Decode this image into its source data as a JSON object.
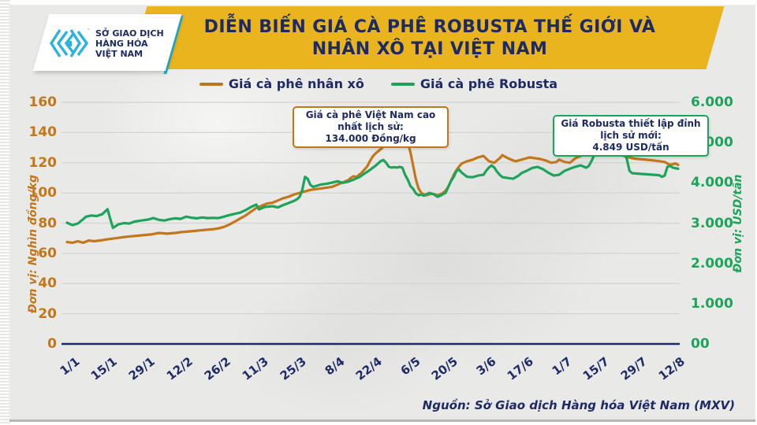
{
  "header": {
    "logo": {
      "org_lines": [
        "SỞ GIAO DỊCH",
        "HÀNG HÓA",
        "VIỆT NAM"
      ]
    },
    "title_lines": [
      "DIỄN BIẾN GIÁ CÀ PHÊ ROBUSTA THẾ GIỚI VÀ",
      "NHÂN XÔ TẠI VIỆT NAM"
    ]
  },
  "legend": {
    "items": [
      {
        "label": "Giá cà phê nhân xô",
        "color": "#c4761b"
      },
      {
        "label": "Giá cà phê Robusta",
        "color": "#1ca45a"
      }
    ]
  },
  "footer": {
    "source": "Nguồn: Sở Giao dịch Hàng hóa Việt Nam (MXV)"
  },
  "colors": {
    "navy": "#1d2a66",
    "banner_yellow": "#e9b41d",
    "logo_cyan": "#2bb3e0",
    "orange_series": "#c4761b",
    "green_series": "#1ca45a",
    "gridline": "#d3d3d1",
    "card_bg": "#e9e9e7"
  },
  "chart_data": {
    "type": "line",
    "title": "Diễn biến giá cà phê Robusta thế giới và nhân xô tại Việt Nam",
    "grid": true,
    "legend_position": "top",
    "x_tick_labels": [
      "1/1",
      "15/1",
      "29/1",
      "12/2",
      "26/2",
      "11/3",
      "25/3",
      "8/4",
      "22/4",
      "6/5",
      "20/5",
      "3/6",
      "17/6",
      "1/7",
      "15/7",
      "29/7",
      "12/8"
    ],
    "x_domain_days": [
      0,
      226
    ],
    "x_tick_day_step": 14,
    "left_axis": {
      "title": "Đơn vị: Nghìn đồng/kg",
      "range": [
        0,
        160
      ],
      "ticks": [
        {
          "label": "160",
          "value": 160
        },
        {
          "label": "140",
          "value": 140
        },
        {
          "label": "120",
          "value": 120
        },
        {
          "label": "100",
          "value": 100
        },
        {
          "label": "80",
          "value": 80
        },
        {
          "label": "60",
          "value": 60
        },
        {
          "label": "40",
          "value": 40
        },
        {
          "label": "20",
          "value": 20
        },
        {
          "label": "0",
          "value": 0
        }
      ]
    },
    "right_axis": {
      "title": "Đơn vị: USD/tấn",
      "range": [
        0,
        6000
      ],
      "ticks": [
        {
          "label": "6.000",
          "value": 6000
        },
        {
          "label": "5.000",
          "value": 5000
        },
        {
          "label": "4.000",
          "value": 4000
        },
        {
          "label": "3.000",
          "value": 3000
        },
        {
          "label": "2.000",
          "value": 2000
        },
        {
          "label": "1.000",
          "value": 1000
        },
        {
          "label": "00",
          "value": 0
        }
      ]
    },
    "series": [
      {
        "name": "Giá cà phê nhân xô",
        "axis": "left",
        "unit": "nghìn đồng/kg",
        "color": "#c4761b",
        "points": [
          [
            0,
            67.5
          ],
          [
            2,
            67
          ],
          [
            4,
            68
          ],
          [
            6,
            67
          ],
          [
            8,
            68.5
          ],
          [
            10,
            68
          ],
          [
            12,
            68.5
          ],
          [
            14,
            69
          ],
          [
            16,
            69.5
          ],
          [
            18,
            70
          ],
          [
            20,
            70.5
          ],
          [
            22,
            71
          ],
          [
            25,
            71.5
          ],
          [
            28,
            72
          ],
          [
            31,
            72.5
          ],
          [
            34,
            73.5
          ],
          [
            37,
            73
          ],
          [
            40,
            73.5
          ],
          [
            42,
            74
          ],
          [
            45,
            74.5
          ],
          [
            48,
            75
          ],
          [
            51,
            75.5
          ],
          [
            54,
            76
          ],
          [
            56,
            76.5
          ],
          [
            58,
            77.5
          ],
          [
            60,
            79
          ],
          [
            62,
            81
          ],
          [
            64,
            83
          ],
          [
            66,
            85
          ],
          [
            68,
            87.5
          ],
          [
            70,
            90
          ],
          [
            72,
            91.5
          ],
          [
            74,
            93
          ],
          [
            76,
            93.5
          ],
          [
            78,
            95
          ],
          [
            80,
            96.5
          ],
          [
            82,
            97.5
          ],
          [
            84,
            99
          ],
          [
            86,
            100
          ],
          [
            88,
            101
          ],
          [
            90,
            102
          ],
          [
            92,
            102.5
          ],
          [
            94,
            103
          ],
          [
            96,
            103.5
          ],
          [
            98,
            104
          ],
          [
            100,
            105.5
          ],
          [
            102,
            107
          ],
          [
            104,
            108.5
          ],
          [
            105,
            110
          ],
          [
            106,
            111
          ],
          [
            107,
            110.5
          ],
          [
            108,
            112
          ],
          [
            109,
            113.5
          ],
          [
            110,
            115.5
          ],
          [
            111,
            117.5
          ],
          [
            112,
            121
          ],
          [
            113,
            124
          ],
          [
            114,
            126
          ],
          [
            115,
            127.5
          ],
          [
            116,
            129
          ],
          [
            117,
            130.5
          ],
          [
            118,
            131
          ],
          [
            119,
            132.5
          ],
          [
            120,
            131.5
          ],
          [
            121,
            133
          ],
          [
            122,
            133.5
          ],
          [
            123,
            133
          ],
          [
            124,
            134
          ],
          [
            125,
            133.5
          ],
          [
            126,
            133
          ],
          [
            127,
            127
          ],
          [
            128,
            118
          ],
          [
            129,
            109
          ],
          [
            130,
            103
          ],
          [
            131,
            100
          ],
          [
            132,
            99
          ],
          [
            133,
            98.5
          ],
          [
            134,
            99
          ],
          [
            135,
            99.5
          ],
          [
            136,
            99
          ],
          [
            137,
            98.5
          ],
          [
            138,
            99
          ],
          [
            139,
            100
          ],
          [
            140,
            101.5
          ],
          [
            141,
            104
          ],
          [
            142,
            108
          ],
          [
            143,
            112
          ],
          [
            144,
            115
          ],
          [
            145,
            117.5
          ],
          [
            146,
            119.5
          ],
          [
            148,
            121
          ],
          [
            150,
            122
          ],
          [
            152,
            123.5
          ],
          [
            154,
            124.5
          ],
          [
            156,
            121
          ],
          [
            158,
            120
          ],
          [
            160,
            123
          ],
          [
            161,
            125
          ],
          [
            163,
            123
          ],
          [
            165,
            121.5
          ],
          [
            166,
            121
          ],
          [
            168,
            122
          ],
          [
            169,
            122.5
          ],
          [
            171,
            123.5
          ],
          [
            173,
            123
          ],
          [
            175,
            122.5
          ],
          [
            177,
            121.5
          ],
          [
            179,
            120
          ],
          [
            181,
            120.5
          ],
          [
            182,
            122
          ],
          [
            184,
            120.5
          ],
          [
            186,
            120
          ],
          [
            188,
            123
          ],
          [
            190,
            124.5
          ],
          [
            193,
            126
          ],
          [
            196,
            127
          ],
          [
            198,
            126.5
          ],
          [
            201,
            126
          ],
          [
            204,
            125.5
          ],
          [
            206,
            124.5
          ],
          [
            209,
            123
          ],
          [
            211,
            122.5
          ],
          [
            214,
            122
          ],
          [
            217,
            121.5
          ],
          [
            219,
            121
          ],
          [
            221,
            120.5
          ],
          [
            223,
            118.5
          ],
          [
            225,
            119.5
          ],
          [
            226,
            118.5
          ]
        ]
      },
      {
        "name": "Giá cà phê Robusta",
        "axis": "right",
        "unit": "USD/tấn",
        "color": "#1ca45a",
        "points": [
          [
            0,
            3010
          ],
          [
            2,
            2950
          ],
          [
            4,
            2990
          ],
          [
            6,
            3100
          ],
          [
            7,
            3160
          ],
          [
            9,
            3190
          ],
          [
            11,
            3175
          ],
          [
            13,
            3220
          ],
          [
            15,
            3345
          ],
          [
            16,
            3100
          ],
          [
            17,
            2880
          ],
          [
            19,
            2970
          ],
          [
            21,
            3000
          ],
          [
            23,
            2990
          ],
          [
            25,
            3040
          ],
          [
            27,
            3060
          ],
          [
            28,
            3070
          ],
          [
            30,
            3090
          ],
          [
            32,
            3125
          ],
          [
            34,
            3080
          ],
          [
            36,
            3065
          ],
          [
            38,
            3100
          ],
          [
            40,
            3120
          ],
          [
            42,
            3105
          ],
          [
            44,
            3160
          ],
          [
            46,
            3135
          ],
          [
            48,
            3120
          ],
          [
            50,
            3140
          ],
          [
            52,
            3125
          ],
          [
            54,
            3130
          ],
          [
            56,
            3125
          ],
          [
            58,
            3160
          ],
          [
            60,
            3200
          ],
          [
            62,
            3230
          ],
          [
            64,
            3260
          ],
          [
            66,
            3320
          ],
          [
            68,
            3400
          ],
          [
            70,
            3460
          ],
          [
            71,
            3340
          ],
          [
            73,
            3400
          ],
          [
            76,
            3420
          ],
          [
            78,
            3390
          ],
          [
            80,
            3450
          ],
          [
            82,
            3500
          ],
          [
            84,
            3555
          ],
          [
            85,
            3590
          ],
          [
            86,
            3650
          ],
          [
            87,
            3820
          ],
          [
            88,
            4150
          ],
          [
            89,
            4100
          ],
          [
            90,
            3950
          ],
          [
            91,
            3900
          ],
          [
            92,
            3920
          ],
          [
            94,
            3960
          ],
          [
            96,
            3980
          ],
          [
            98,
            4005
          ],
          [
            100,
            4040
          ],
          [
            102,
            4000
          ],
          [
            104,
            4030
          ],
          [
            106,
            4080
          ],
          [
            108,
            4140
          ],
          [
            110,
            4230
          ],
          [
            112,
            4320
          ],
          [
            114,
            4420
          ],
          [
            115,
            4480
          ],
          [
            116,
            4540
          ],
          [
            117,
            4570
          ],
          [
            118,
            4500
          ],
          [
            119,
            4400
          ],
          [
            120,
            4380
          ],
          [
            121,
            4390
          ],
          [
            122,
            4380
          ],
          [
            123,
            4395
          ],
          [
            124,
            4380
          ],
          [
            125,
            4200
          ],
          [
            126,
            4080
          ],
          [
            127,
            3920
          ],
          [
            128,
            3850
          ],
          [
            129,
            3740
          ],
          [
            130,
            3692
          ],
          [
            131,
            3710
          ],
          [
            132,
            3680
          ],
          [
            133,
            3720
          ],
          [
            134,
            3750
          ],
          [
            135,
            3730
          ],
          [
            136,
            3700
          ],
          [
            137,
            3655
          ],
          [
            138,
            3680
          ],
          [
            139,
            3720
          ],
          [
            140,
            3750
          ],
          [
            141,
            3900
          ],
          [
            142,
            4043
          ],
          [
            143,
            4150
          ],
          [
            144,
            4290
          ],
          [
            145,
            4330
          ],
          [
            146,
            4250
          ],
          [
            147,
            4200
          ],
          [
            148,
            4150
          ],
          [
            150,
            4141
          ],
          [
            152,
            4180
          ],
          [
            154,
            4200
          ],
          [
            155,
            4300
          ],
          [
            156,
            4380
          ],
          [
            157,
            4435
          ],
          [
            158,
            4380
          ],
          [
            159,
            4280
          ],
          [
            160,
            4200
          ],
          [
            161,
            4141
          ],
          [
            163,
            4120
          ],
          [
            165,
            4102
          ],
          [
            167,
            4180
          ],
          [
            168,
            4239
          ],
          [
            170,
            4300
          ],
          [
            172,
            4370
          ],
          [
            174,
            4396
          ],
          [
            176,
            4340
          ],
          [
            178,
            4250
          ],
          [
            180,
            4180
          ],
          [
            182,
            4200
          ],
          [
            184,
            4298
          ],
          [
            186,
            4350
          ],
          [
            188,
            4400
          ],
          [
            190,
            4435
          ],
          [
            192,
            4376
          ],
          [
            193,
            4420
          ],
          [
            194,
            4550
          ],
          [
            195,
            4700
          ],
          [
            196,
            4849
          ],
          [
            197,
            4800
          ],
          [
            198,
            4790
          ],
          [
            200,
            4810
          ],
          [
            202,
            4825
          ],
          [
            204,
            4800
          ],
          [
            205,
            4770
          ],
          [
            206,
            4760
          ],
          [
            207,
            4600
          ],
          [
            208,
            4300
          ],
          [
            209,
            4240
          ],
          [
            211,
            4230
          ],
          [
            213,
            4220
          ],
          [
            215,
            4210
          ],
          [
            217,
            4200
          ],
          [
            219,
            4190
          ],
          [
            220,
            4150
          ],
          [
            221,
            4180
          ],
          [
            222,
            4396
          ],
          [
            223,
            4420
          ],
          [
            224,
            4380
          ],
          [
            226,
            4350
          ]
        ]
      }
    ],
    "annotations": [
      {
        "lines": [
          "Giá cà phê Việt Nam cao nhất lịch sử:",
          "134.000 Đồng/kg"
        ],
        "series": "Giá cà phê nhân xô",
        "color": "#c4761b",
        "axis": "left",
        "target_day": 121,
        "target_value": 134
      },
      {
        "lines": [
          "Giá Robusta thiết lập đỉnh lịch sử mới:",
          "4.849 USD/tấn"
        ],
        "series": "Giá cà phê Robusta",
        "color": "#1ca45a",
        "axis": "right",
        "target_day": 196,
        "target_value": 4849
      }
    ]
  }
}
